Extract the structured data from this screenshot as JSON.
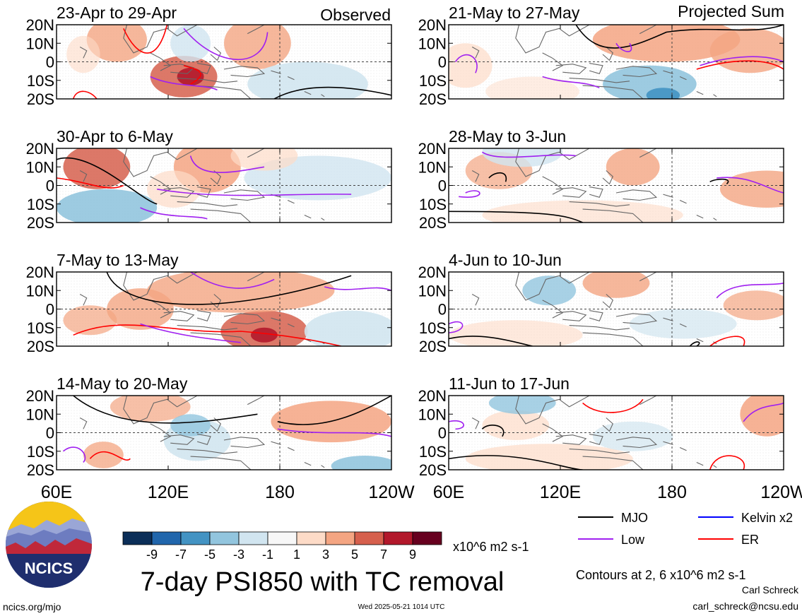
{
  "figure": {
    "title": "7-day PSI850 with TC removal",
    "observed_label": "Observed",
    "projected_label": "Projected Sum",
    "units": "x10^6 m2 s-1",
    "contours_note": "Contours at 2, 6 x10^6 m2 s-1",
    "author": "Carl Schreck",
    "email": "carl_schreck@ncsu.edu",
    "site": "ncics.org/mjo",
    "timestamp": "Wed 2025-05-21 1014 UTC",
    "logo_text": "NCICS"
  },
  "map": {
    "lat_labels": [
      "20N",
      "10N",
      "0",
      "10S",
      "20S"
    ],
    "lat_values": [
      20,
      10,
      0,
      -10,
      -20
    ],
    "lon_labels": [
      "60E",
      "120E",
      "180",
      "120W"
    ],
    "lon_range": [
      60,
      240
    ],
    "lat_range": [
      -20,
      20
    ]
  },
  "panels": [
    {
      "label": "23-Apr to 29-Apr",
      "column": "observed"
    },
    {
      "label": "30-Apr to 6-May",
      "column": "observed"
    },
    {
      "label": "7-May to 13-May",
      "column": "observed"
    },
    {
      "label": "14-May to 20-May",
      "column": "observed"
    },
    {
      "label": "21-May to 27-May",
      "column": "projected"
    },
    {
      "label": "28-May to 3-Jun",
      "column": "projected"
    },
    {
      "label": "4-Jun to 10-Jun",
      "column": "projected"
    },
    {
      "label": "11-Jun to 17-Jun",
      "column": "projected"
    }
  ],
  "colorbar": {
    "ticks": [
      "-9",
      "-7",
      "-5",
      "-3",
      "-1",
      "1",
      "3",
      "5",
      "7",
      "9"
    ],
    "colors": [
      "#0b2e58",
      "#2166ac",
      "#4393c3",
      "#92c5de",
      "#d1e5f0",
      "#f7f7f7",
      "#fddbc7",
      "#f4a582",
      "#d6604d",
      "#b2182b",
      "#67001f"
    ]
  },
  "legend": [
    {
      "name": "MJO",
      "color": "#000000"
    },
    {
      "name": "Kelvin x2",
      "color": "#0000ff"
    },
    {
      "name": "Low",
      "color": "#a020f0"
    },
    {
      "name": "ER",
      "color": "#ff0000"
    }
  ]
}
